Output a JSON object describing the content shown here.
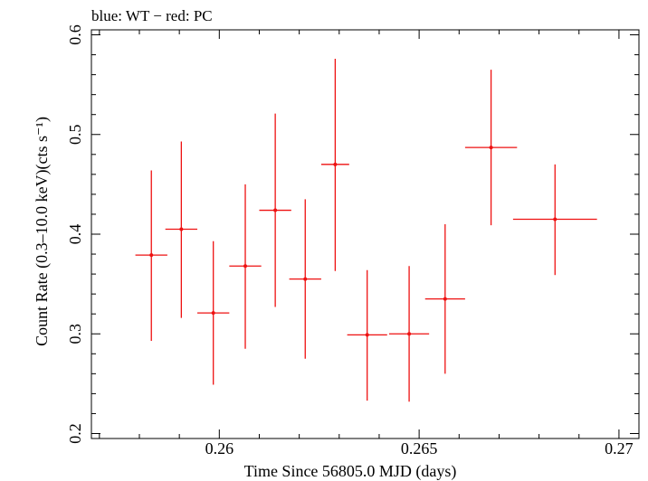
{
  "chart_data": {
    "type": "scatter",
    "title": "blue: WT − red: PC",
    "xlabel": "Time Since 56805.0 MJD (days)",
    "ylabel": "Count Rate (0.3–10.0 keV)(cts s⁻¹)",
    "xlim": [
      0.2568,
      0.2705
    ],
    "ylim": [
      0.195,
      0.605
    ],
    "xticks": [
      0.26,
      0.265,
      0.27
    ],
    "xtick_labels": [
      "0.26",
      "0.265",
      "0.27"
    ],
    "yticks": [
      0.2,
      0.3,
      0.4,
      0.5,
      0.6
    ],
    "ytick_labels": [
      "0.2",
      "0.3",
      "0.4",
      "0.5",
      "0.6"
    ],
    "grid": false,
    "series": [
      {
        "color": "#ee1111",
        "points": [
          {
            "x": 0.2583,
            "xerr": 0.0004,
            "y": 0.379,
            "yerr_lo": 0.086,
            "yerr_hi": 0.085
          },
          {
            "x": 0.25905,
            "xerr": 0.0004,
            "y": 0.405,
            "yerr_lo": 0.089,
            "yerr_hi": 0.088
          },
          {
            "x": 0.25985,
            "xerr": 0.0004,
            "y": 0.321,
            "yerr_lo": 0.072,
            "yerr_hi": 0.072
          },
          {
            "x": 0.26065,
            "xerr": 0.0004,
            "y": 0.368,
            "yerr_lo": 0.083,
            "yerr_hi": 0.082
          },
          {
            "x": 0.2614,
            "xerr": 0.0004,
            "y": 0.424,
            "yerr_lo": 0.097,
            "yerr_hi": 0.097
          },
          {
            "x": 0.26215,
            "xerr": 0.0004,
            "y": 0.355,
            "yerr_lo": 0.08,
            "yerr_hi": 0.08
          },
          {
            "x": 0.2629,
            "xerr": 0.00035,
            "y": 0.47,
            "yerr_lo": 0.107,
            "yerr_hi": 0.106
          },
          {
            "x": 0.2637,
            "xerr": 0.0005,
            "y": 0.299,
            "yerr_lo": 0.066,
            "yerr_hi": 0.065
          },
          {
            "x": 0.26475,
            "xerr": 0.0005,
            "y": 0.3,
            "yerr_lo": 0.068,
            "yerr_hi": 0.068
          },
          {
            "x": 0.26565,
            "xerr": 0.0005,
            "y": 0.335,
            "yerr_lo": 0.075,
            "yerr_hi": 0.075
          },
          {
            "x": 0.2668,
            "xerr": 0.00065,
            "y": 0.487,
            "yerr_lo": 0.078,
            "yerr_hi": 0.078
          },
          {
            "x": 0.2684,
            "xerr": 0.00105,
            "y": 0.415,
            "yerr_lo": 0.056,
            "yerr_hi": 0.055
          }
        ]
      }
    ]
  }
}
